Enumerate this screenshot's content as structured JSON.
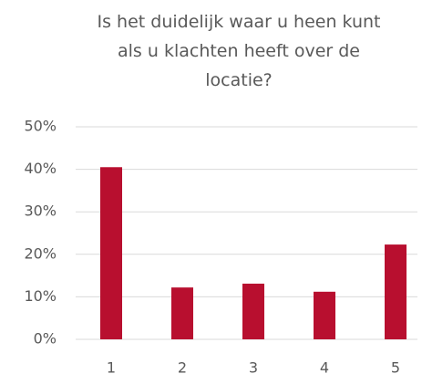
{
  "chart_data": {
    "type": "bar",
    "title": "Is het duidelijk waar u heen kunt als u klachten heeft over de locatie?",
    "categories": [
      "1",
      "2",
      "3",
      "4",
      "5"
    ],
    "values": [
      40.5,
      12.2,
      13.1,
      11.2,
      22.3
    ],
    "color": "#b80f2f",
    "ylim": [
      0,
      50
    ],
    "yticks": [
      {
        "value": 0,
        "label": "0%"
      },
      {
        "value": 10,
        "label": "10%"
      },
      {
        "value": 20,
        "label": "20%"
      },
      {
        "value": 30,
        "label": "30%"
      },
      {
        "value": 40,
        "label": "40%"
      },
      {
        "value": 50,
        "label": "50%"
      }
    ],
    "grid": true
  }
}
